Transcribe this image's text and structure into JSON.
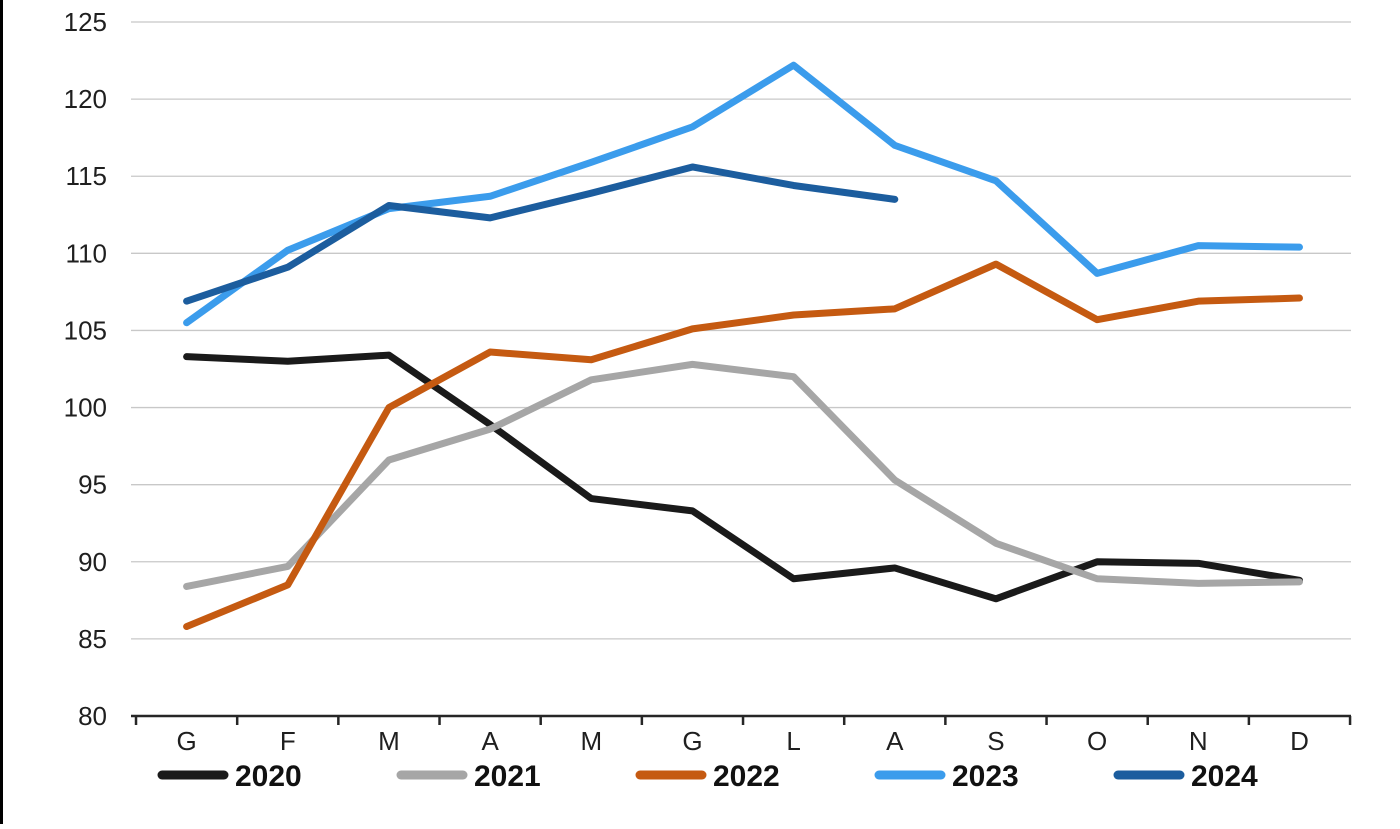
{
  "chart_data": {
    "type": "line",
    "categories": [
      "G",
      "F",
      "M",
      "A",
      "M",
      "G",
      "L",
      "A",
      "S",
      "O",
      "N",
      "D"
    ],
    "series": [
      {
        "name": "2020",
        "color": "#1A1A1A",
        "values": [
          103.3,
          103.0,
          103.4,
          98.9,
          94.1,
          93.3,
          88.9,
          89.6,
          87.6,
          90.0,
          89.9,
          88.8
        ]
      },
      {
        "name": "2021",
        "color": "#A6A6A6",
        "values": [
          88.4,
          89.7,
          96.6,
          98.6,
          101.8,
          102.8,
          102.0,
          95.3,
          91.2,
          88.9,
          88.6,
          88.7
        ]
      },
      {
        "name": "2022",
        "color": "#C55A11",
        "values": [
          85.8,
          88.5,
          100.0,
          103.6,
          103.1,
          105.1,
          106.0,
          106.4,
          109.3,
          105.7,
          106.9,
          107.1
        ]
      },
      {
        "name": "2023",
        "color": "#3B9CEC",
        "values": [
          105.5,
          110.2,
          112.9,
          113.7,
          115.9,
          118.2,
          122.2,
          117.0,
          114.7,
          108.7,
          110.5,
          110.4
        ]
      },
      {
        "name": "2024",
        "color": "#1C5D9E",
        "values": [
          106.9,
          109.1,
          113.1,
          112.3,
          113.9,
          115.6,
          114.4,
          113.5,
          null,
          null,
          null,
          null
        ]
      }
    ],
    "title": "",
    "xlabel": "",
    "ylabel": "",
    "ylim": [
      80,
      125
    ],
    "y_ticks": [
      125,
      120,
      115,
      110,
      105,
      100,
      95,
      90,
      85,
      80
    ],
    "grid": true,
    "legend_position": "bottom",
    "legend_labels": [
      "2020",
      "2021",
      "2022",
      "2023",
      "2024"
    ]
  },
  "colors": {
    "background": "#FFFFFF",
    "gridline": "#C8C8C8",
    "axis": "#262626",
    "tick_label": "#1F1F1F",
    "frame_border": "#000000"
  }
}
